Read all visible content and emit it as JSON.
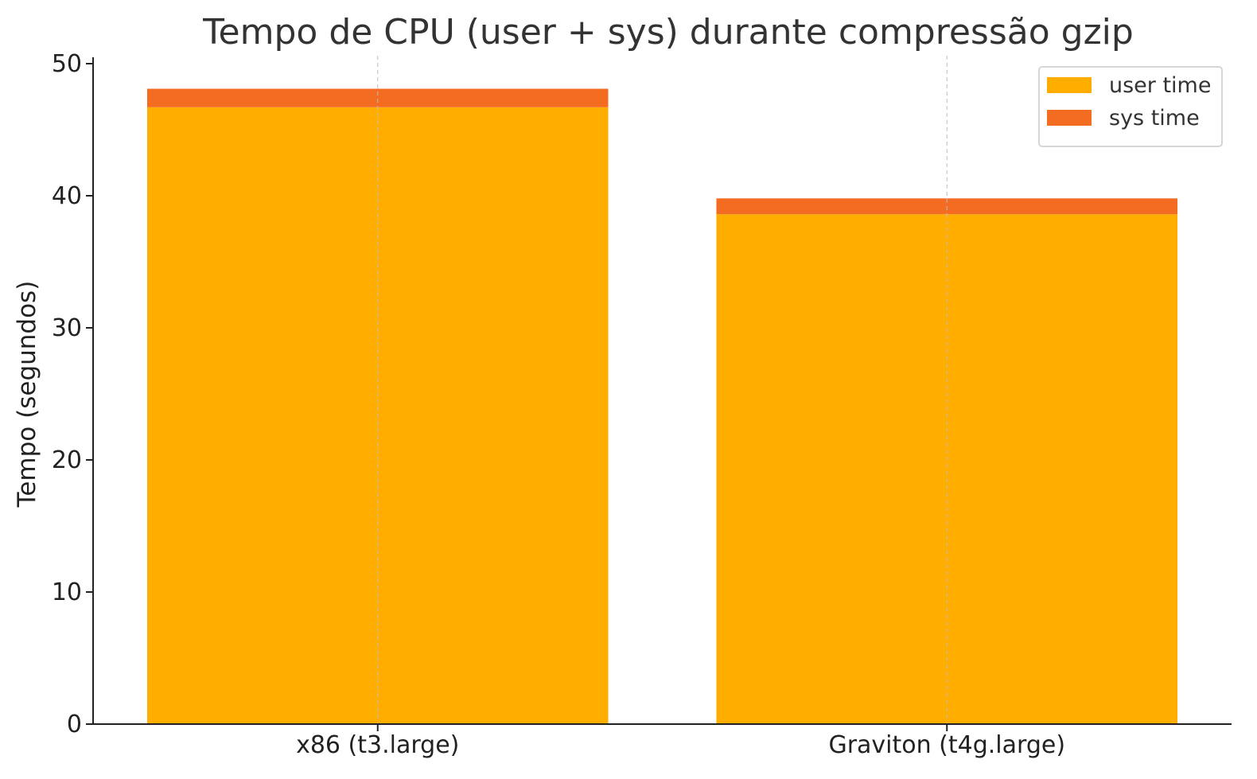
{
  "chart_data": {
    "type": "bar",
    "stacked": true,
    "title": "Tempo de CPU (user + sys) durante compressão gzip",
    "xlabel": "",
    "ylabel": "Tempo (segundos)",
    "categories": [
      "x86 (t3.large)",
      "Graviton (t4g.large)"
    ],
    "series": [
      {
        "name": "user time",
        "color": "#FFAE00",
        "values": [
          46.7,
          38.6
        ]
      },
      {
        "name": "sys time",
        "color": "#F46B22",
        "values": [
          1.4,
          1.2
        ]
      }
    ],
    "ylim": [
      0,
      50
    ],
    "yticks": [
      0,
      10,
      20,
      30,
      40,
      50
    ],
    "grid": {
      "x": true,
      "y": false
    },
    "legend_position": "top-right"
  }
}
